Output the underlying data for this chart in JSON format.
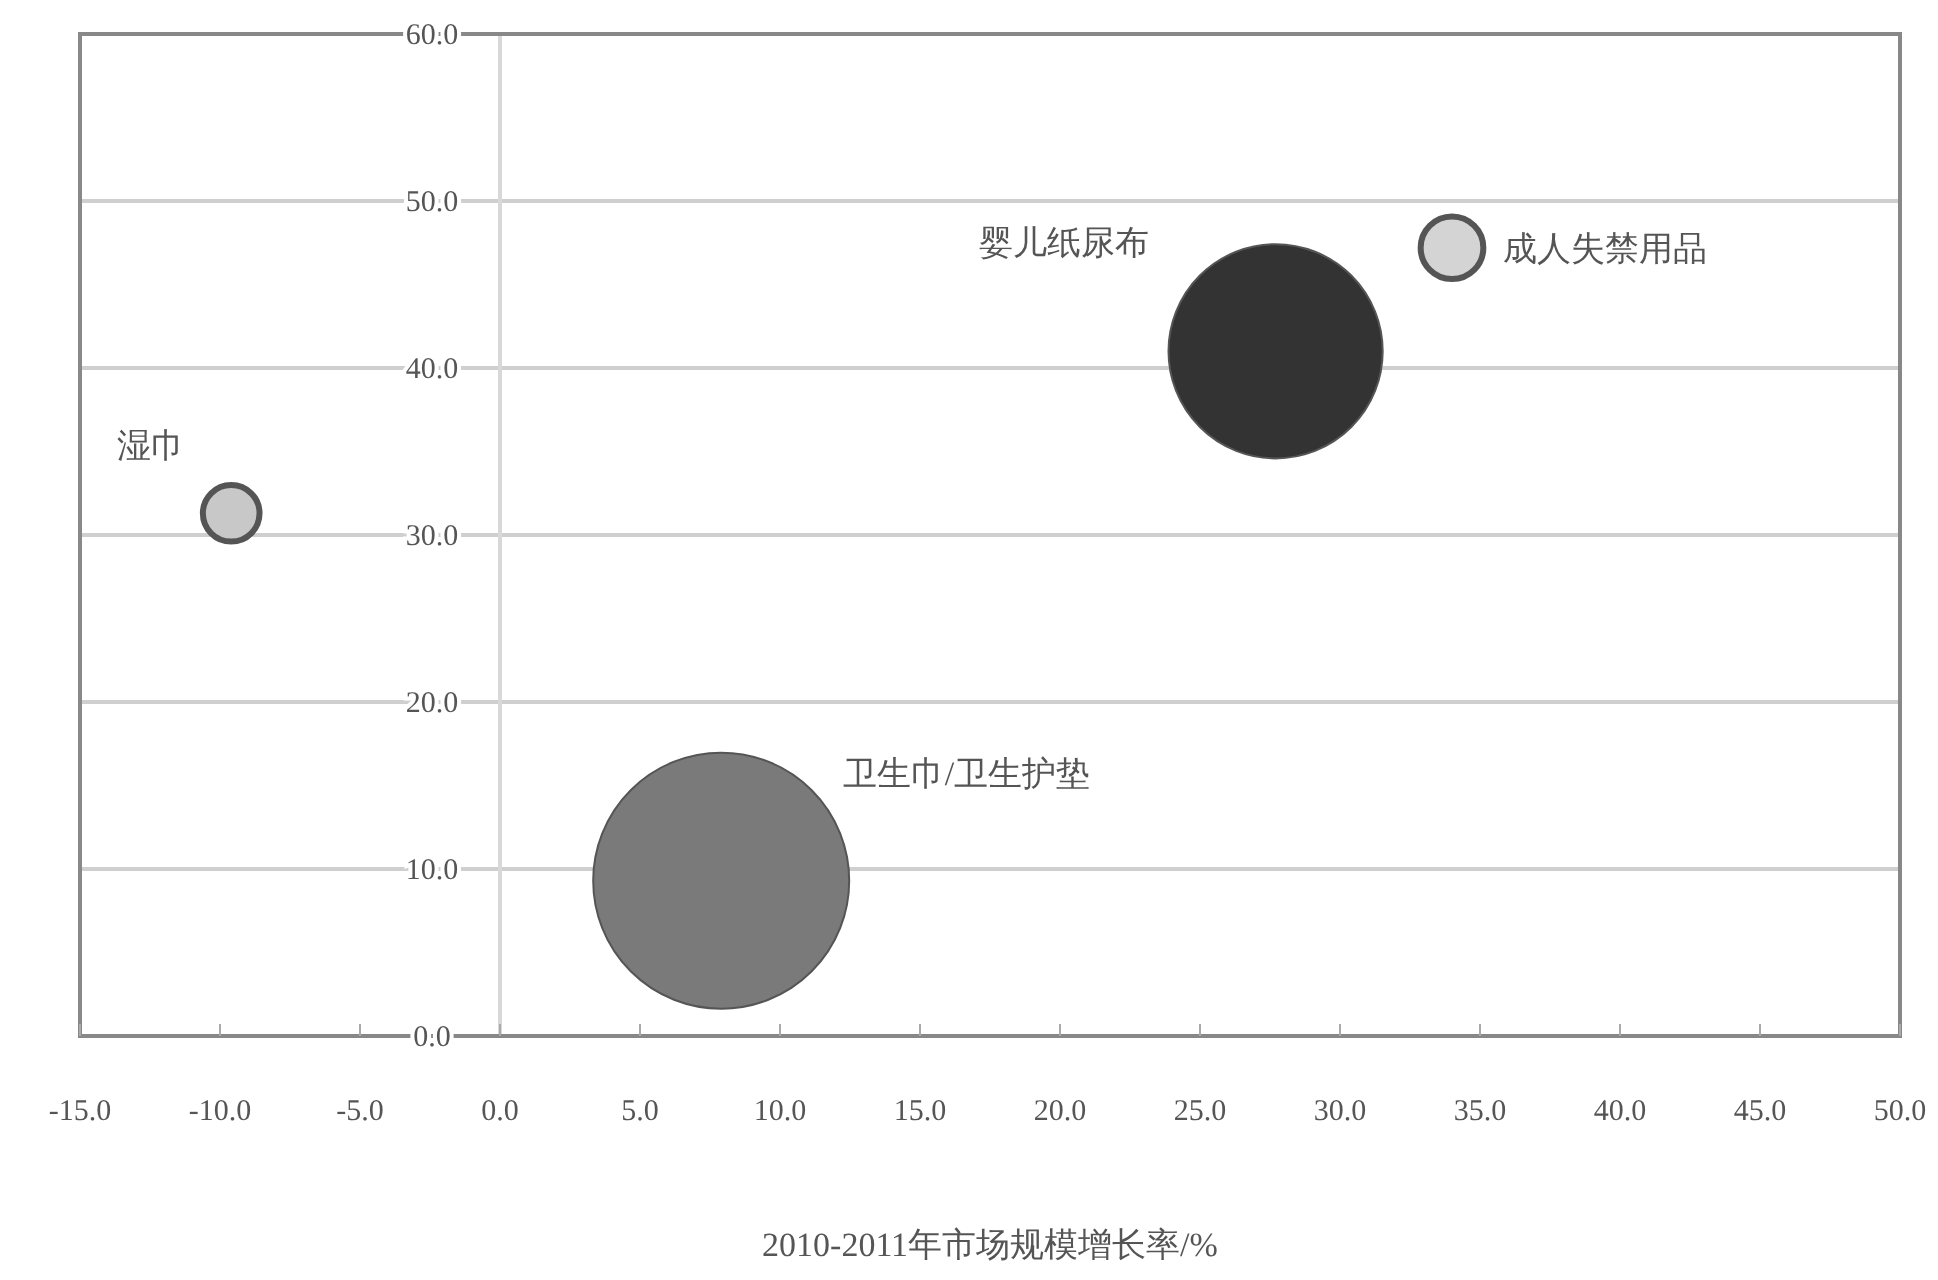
{
  "chart_data": {
    "type": "bubble",
    "xlabel": "2010-2011年市场规模增长率/%",
    "xlim": [
      -15,
      50
    ],
    "ylim": [
      0,
      60
    ],
    "xticks": [
      {
        "value": -15,
        "label": "-15.0"
      },
      {
        "value": -10,
        "label": "-10.0"
      },
      {
        "value": -5,
        "label": "-5.0"
      },
      {
        "value": 0,
        "label": "0.0"
      },
      {
        "value": 5,
        "label": "5.0"
      },
      {
        "value": 10,
        "label": "10.0"
      },
      {
        "value": 15,
        "label": "15.0"
      },
      {
        "value": 20,
        "label": "20.0"
      },
      {
        "value": 25,
        "label": "25.0"
      },
      {
        "value": 30,
        "label": "30.0"
      },
      {
        "value": 35,
        "label": "35.0"
      },
      {
        "value": 40,
        "label": "40.0"
      },
      {
        "value": 45,
        "label": "45.0"
      },
      {
        "value": 50,
        "label": "50.0"
      }
    ],
    "yticks": [
      {
        "value": 0,
        "label": "0.0"
      },
      {
        "value": 10,
        "label": "10.0"
      },
      {
        "value": 20,
        "label": "20.0"
      },
      {
        "value": 30,
        "label": "30.0"
      },
      {
        "value": 40,
        "label": "40.0"
      },
      {
        "value": 50,
        "label": "50.0"
      },
      {
        "value": 60,
        "label": "60.0"
      }
    ],
    "grid": "y",
    "series": [
      {
        "name": "湿巾",
        "color": "#c8c8c8",
        "x": [
          -9.6
        ],
        "values": [
          31.3
        ],
        "sizes": [
          0.049
        ]
      },
      {
        "name": "婴儿纸尿布",
        "color": "#333333",
        "x": [
          27.7
        ],
        "values": [
          41.0
        ],
        "sizes": [
          0.7
        ]
      },
      {
        "name": "成人失禁用品",
        "color": "#d4d4d4",
        "x": [
          34.0
        ],
        "values": [
          47.2
        ],
        "sizes": [
          0.06
        ]
      },
      {
        "name": "卫生巾/卫生护垫",
        "color": "#7a7a7a",
        "x": [
          7.9
        ],
        "values": [
          9.3
        ],
        "sizes": [
          1
        ]
      }
    ]
  }
}
